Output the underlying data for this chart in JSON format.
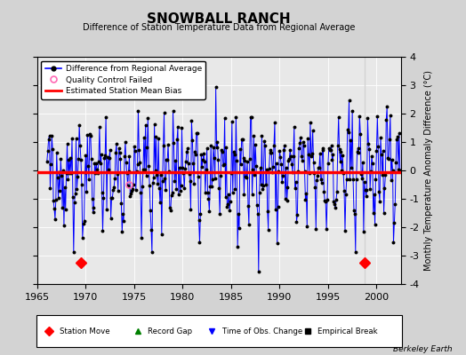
{
  "title": "SNOWBALL RANCH",
  "subtitle": "Difference of Station Temperature Data from Regional Average",
  "ylabel": "Monthly Temperature Anomaly Difference (°C)",
  "xlabel_ticks": [
    1965,
    1970,
    1975,
    1980,
    1985,
    1990,
    1995,
    2000
  ],
  "ylim": [
    -4,
    4
  ],
  "xlim": [
    1965.0,
    2002.5
  ],
  "bias_value": -0.07,
  "bias_start": 1965.0,
  "bias_end": 1998.5,
  "bias2_value": -0.05,
  "bias2_start": 1998.5,
  "bias2_end": 2002.5,
  "station_move_years": [
    1969.5,
    1998.75
  ],
  "vertical_line_year": 1998.75,
  "line_color": "#0000FF",
  "bias_color": "#FF0000",
  "dot_color": "#000000",
  "background_color": "#E8E8E8",
  "qc_fail_years": [
    1974.5
  ],
  "qc_fail_values": [
    -0.5
  ],
  "credit": "Berkeley Earth",
  "seed": 42
}
